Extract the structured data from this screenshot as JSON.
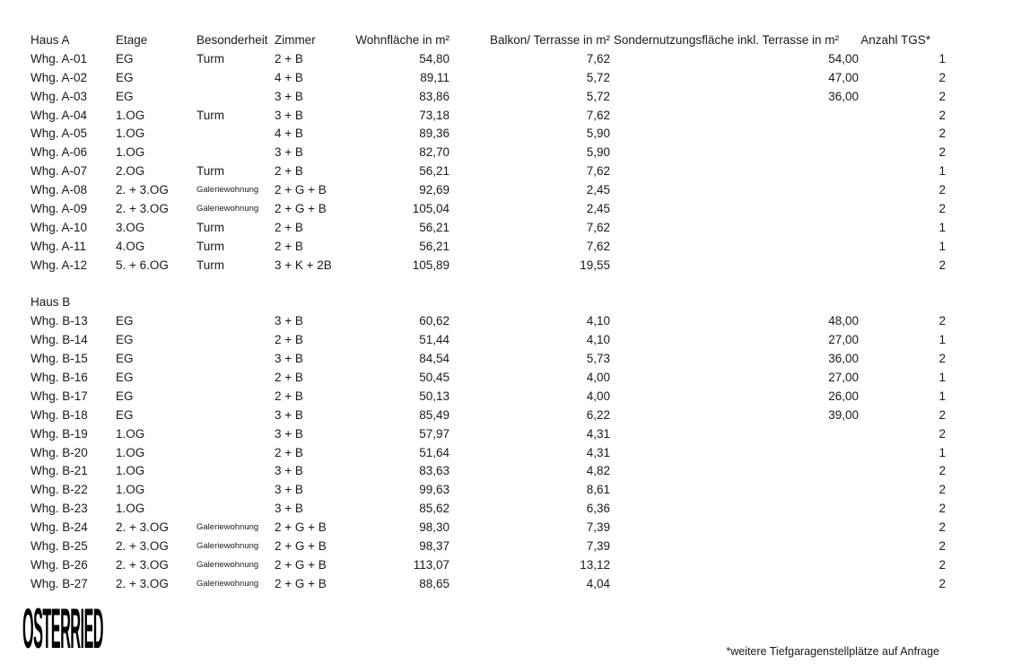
{
  "table": {
    "columns": [
      {
        "key": "name",
        "label": "Haus A",
        "align": "left"
      },
      {
        "key": "etage",
        "label": "Etage",
        "align": "left"
      },
      {
        "key": "besonderheit",
        "label": "Besonderheit",
        "align": "left"
      },
      {
        "key": "zimmer",
        "label": "Zimmer",
        "align": "left"
      },
      {
        "key": "wohnflaeche",
        "label": "Wohnfläche in m²",
        "align": "right"
      },
      {
        "key": "balkon",
        "label": "Balkon/ Terrasse in m²",
        "align": "right"
      },
      {
        "key": "sondernutzung",
        "label": "Sondernutzungsfläche inkl. Terrasse in m²",
        "align": "right"
      },
      {
        "key": "tgs",
        "label": "Anzahl TGS*",
        "align": "right"
      }
    ],
    "small_text_values": [
      "Galeriewohnung"
    ],
    "sections": [
      {
        "title": null,
        "rows": [
          {
            "name": "Whg. A-01",
            "etage": "EG",
            "besonderheit": "Turm",
            "zimmer": "2 + B",
            "wohnflaeche": "54,80",
            "balkon": "7,62",
            "sondernutzung": "54,00",
            "tgs": "1"
          },
          {
            "name": "Whg. A-02",
            "etage": "EG",
            "besonderheit": "",
            "zimmer": "4 + B",
            "wohnflaeche": "89,11",
            "balkon": "5,72",
            "sondernutzung": "47,00",
            "tgs": "2"
          },
          {
            "name": "Whg. A-03",
            "etage": "EG",
            "besonderheit": "",
            "zimmer": "3 + B",
            "wohnflaeche": "83,86",
            "balkon": "5,72",
            "sondernutzung": "36,00",
            "tgs": "2"
          },
          {
            "name": "Whg. A-04",
            "etage": "1.OG",
            "besonderheit": "Turm",
            "zimmer": "3 + B",
            "wohnflaeche": "73,18",
            "balkon": "7,62",
            "sondernutzung": "",
            "tgs": "2"
          },
          {
            "name": "Whg. A-05",
            "etage": "1.OG",
            "besonderheit": "",
            "zimmer": "4 + B",
            "wohnflaeche": "89,36",
            "balkon": "5,90",
            "sondernutzung": "",
            "tgs": "2"
          },
          {
            "name": "Whg. A-06",
            "etage": "1.OG",
            "besonderheit": "",
            "zimmer": "3 + B",
            "wohnflaeche": "82,70",
            "balkon": "5,90",
            "sondernutzung": "",
            "tgs": "2"
          },
          {
            "name": "Whg. A-07",
            "etage": "2.OG",
            "besonderheit": "Turm",
            "zimmer": "2 + B",
            "wohnflaeche": "56,21",
            "balkon": "7,62",
            "sondernutzung": "",
            "tgs": "1"
          },
          {
            "name": "Whg. A-08",
            "etage": "2. + 3.OG",
            "besonderheit": "Galeriewohnung",
            "zimmer": "2 + G + B",
            "wohnflaeche": "92,69",
            "balkon": "2,45",
            "sondernutzung": "",
            "tgs": "2"
          },
          {
            "name": "Whg. A-09",
            "etage": "2. + 3.OG",
            "besonderheit": "Galeriewohnung",
            "zimmer": "2 + G + B",
            "wohnflaeche": "105,04",
            "balkon": "2,45",
            "sondernutzung": "",
            "tgs": "2"
          },
          {
            "name": "Whg. A-10",
            "etage": "3.OG",
            "besonderheit": "Turm",
            "zimmer": "2 + B",
            "wohnflaeche": "56,21",
            "balkon": "7,62",
            "sondernutzung": "",
            "tgs": "1"
          },
          {
            "name": "Whg. A-11",
            "etage": "4.OG",
            "besonderheit": "Turm",
            "zimmer": "2 + B",
            "wohnflaeche": "56,21",
            "balkon": "7,62",
            "sondernutzung": "",
            "tgs": "1"
          },
          {
            "name": "Whg. A-12",
            "etage": "5. + 6.OG",
            "besonderheit": "Turm",
            "zimmer": "3 + K + 2B",
            "wohnflaeche": "105,89",
            "balkon": "19,55",
            "sondernutzung": "",
            "tgs": "2"
          }
        ]
      },
      {
        "title": "Haus B",
        "rows": [
          {
            "name": "Whg. B-13",
            "etage": "EG",
            "besonderheit": "",
            "zimmer": "3 + B",
            "wohnflaeche": "60,62",
            "balkon": "4,10",
            "sondernutzung": "48,00",
            "tgs": "2"
          },
          {
            "name": "Whg. B-14",
            "etage": "EG",
            "besonderheit": "",
            "zimmer": "2 + B",
            "wohnflaeche": "51,44",
            "balkon": "4,10",
            "sondernutzung": "27,00",
            "tgs": "1"
          },
          {
            "name": "Whg. B-15",
            "etage": "EG",
            "besonderheit": "",
            "zimmer": "3 + B",
            "wohnflaeche": "84,54",
            "balkon": "5,73",
            "sondernutzung": "36,00",
            "tgs": "2"
          },
          {
            "name": "Whg. B-16",
            "etage": "EG",
            "besonderheit": "",
            "zimmer": "2 + B",
            "wohnflaeche": "50,45",
            "balkon": "4,00",
            "sondernutzung": "27,00",
            "tgs": "1"
          },
          {
            "name": "Whg. B-17",
            "etage": "EG",
            "besonderheit": "",
            "zimmer": "2 + B",
            "wohnflaeche": "50,13",
            "balkon": "4,00",
            "sondernutzung": "26,00",
            "tgs": "1"
          },
          {
            "name": "Whg. B-18",
            "etage": "EG",
            "besonderheit": "",
            "zimmer": "3 + B",
            "wohnflaeche": "85,49",
            "balkon": "6,22",
            "sondernutzung": "39,00",
            "tgs": "2"
          },
          {
            "name": "Whg. B-19",
            "etage": "1.OG",
            "besonderheit": "",
            "zimmer": "3 + B",
            "wohnflaeche": "57,97",
            "balkon": "4,31",
            "sondernutzung": "",
            "tgs": "2"
          },
          {
            "name": "Whg. B-20",
            "etage": "1.OG",
            "besonderheit": "",
            "zimmer": "2 + B",
            "wohnflaeche": "51,64",
            "balkon": "4,31",
            "sondernutzung": "",
            "tgs": "1"
          },
          {
            "name": "Whg. B-21",
            "etage": "1.OG",
            "besonderheit": "",
            "zimmer": "3 + B",
            "wohnflaeche": "83,63",
            "balkon": "4,82",
            "sondernutzung": "",
            "tgs": "2"
          },
          {
            "name": "Whg. B-22",
            "etage": "1.OG",
            "besonderheit": "",
            "zimmer": "3 + B",
            "wohnflaeche": "99,63",
            "balkon": "8,61",
            "sondernutzung": "",
            "tgs": "2"
          },
          {
            "name": "Whg. B-23",
            "etage": "1.OG",
            "besonderheit": "",
            "zimmer": "3 + B",
            "wohnflaeche": "85,62",
            "balkon": "6,36",
            "sondernutzung": "",
            "tgs": "2"
          },
          {
            "name": "Whg. B-24",
            "etage": "2. + 3.OG",
            "besonderheit": "Galeriewohnung",
            "zimmer": "2 + G + B",
            "wohnflaeche": "98,30",
            "balkon": "7,39",
            "sondernutzung": "",
            "tgs": "2"
          },
          {
            "name": "Whg. B-25",
            "etage": "2. + 3.OG",
            "besonderheit": "Galeriewohnung",
            "zimmer": "2 + G + B",
            "wohnflaeche": "98,37",
            "balkon": "7,39",
            "sondernutzung": "",
            "tgs": "2"
          },
          {
            "name": "Whg. B-26",
            "etage": "2. + 3.OG",
            "besonderheit": "Galeriewohnung",
            "zimmer": "2 + G + B",
            "wohnflaeche": "113,07",
            "balkon": "13,12",
            "sondernutzung": "",
            "tgs": "2"
          },
          {
            "name": "Whg. B-27",
            "etage": "2. + 3.OG",
            "besonderheit": "Galeriewohnung",
            "zimmer": "2 + G + B",
            "wohnflaeche": "88,65",
            "balkon": "4,04",
            "sondernutzung": "",
            "tgs": "2"
          }
        ]
      }
    ]
  },
  "footer": {
    "logo_text": "OSTERRIED",
    "note": "*weitere Tiefgaragenstellplätze auf Anfrage"
  },
  "colors": {
    "text": "#1a1a1a",
    "background": "#ffffff",
    "logo": "#000000"
  }
}
